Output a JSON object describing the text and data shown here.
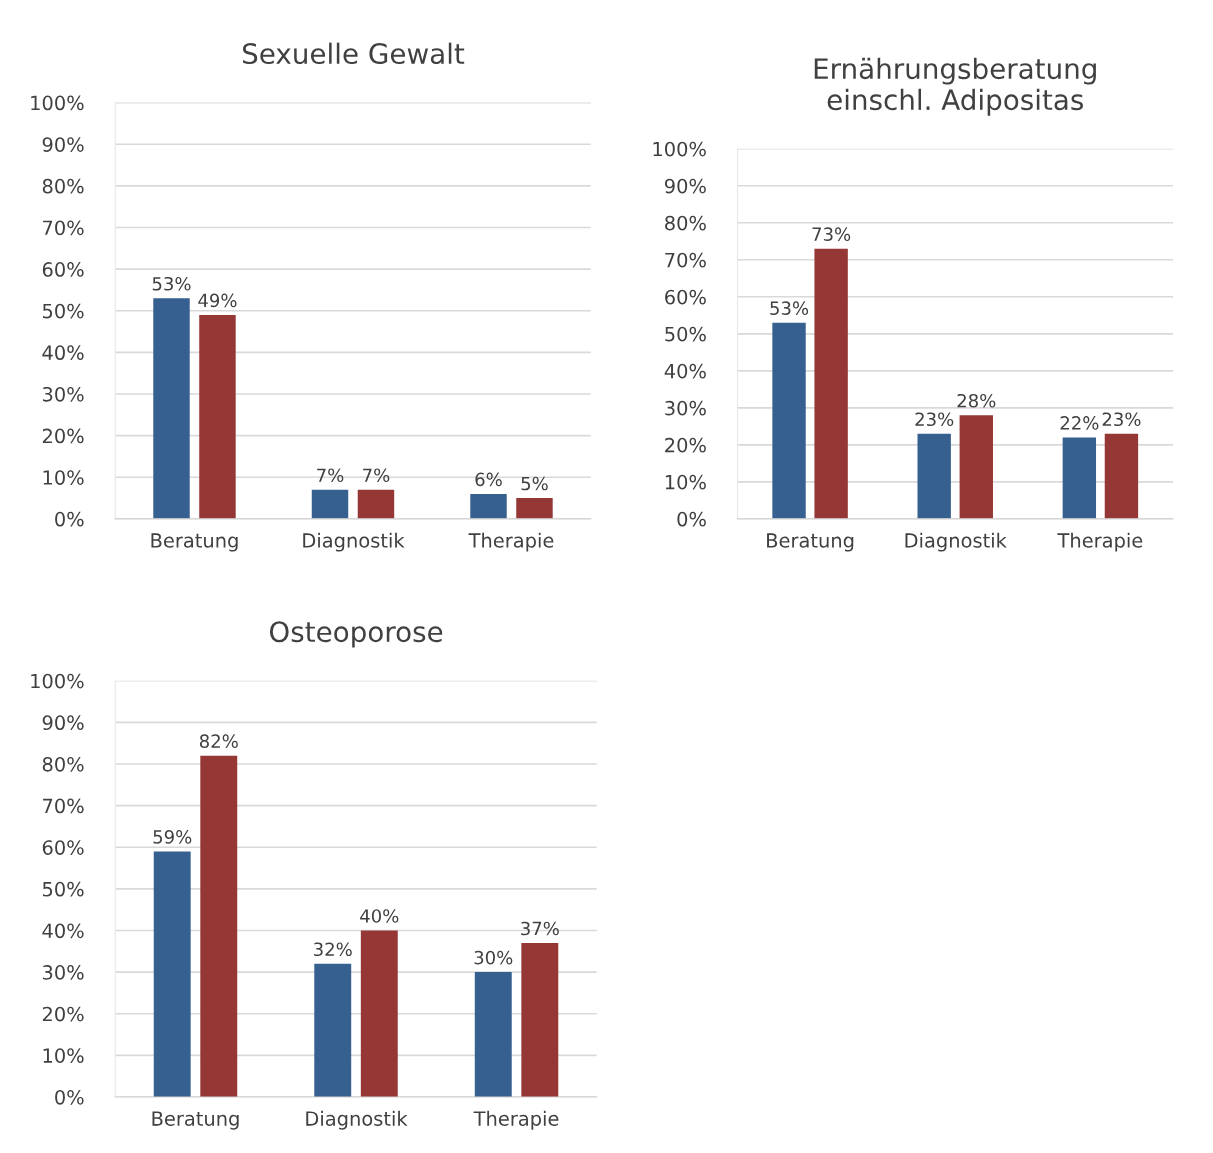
{
  "chart_data": [
    {
      "type": "bar",
      "title": "Sexuelle Gewalt",
      "categories": [
        "Beratung",
        "Diagnostik",
        "Therapie"
      ],
      "series": [
        {
          "color": "#36608f",
          "values": [
            53,
            7,
            6
          ],
          "value_labels": [
            "53%",
            "7%",
            "6%"
          ]
        },
        {
          "color": "#953735",
          "values": [
            49,
            7,
            5
          ],
          "value_labels": [
            "49%",
            "7%",
            "5%"
          ]
        }
      ],
      "ylim": [
        0,
        100
      ],
      "yticks": [
        {
          "value": 0,
          "label": "0%"
        },
        {
          "value": 10,
          "label": "10%"
        },
        {
          "value": 20,
          "label": "20%"
        },
        {
          "value": 30,
          "label": "30%"
        },
        {
          "value": 40,
          "label": "40%"
        },
        {
          "value": 50,
          "label": "50%"
        },
        {
          "value": 60,
          "label": "60%"
        },
        {
          "value": 70,
          "label": "70%"
        },
        {
          "value": 80,
          "label": "80%"
        },
        {
          "value": 90,
          "label": "90%"
        },
        {
          "value": 100,
          "label": "100%"
        }
      ],
      "grid": "y"
    },
    {
      "type": "bar",
      "title": "Ernährungsberatung\neinschl. Adipositas",
      "categories": [
        "Beratung",
        "Diagnostik",
        "Therapie"
      ],
      "series": [
        {
          "color": "#36608f",
          "values": [
            53,
            23,
            22
          ],
          "value_labels": [
            "53%",
            "23%",
            "22%"
          ]
        },
        {
          "color": "#953735",
          "values": [
            73,
            28,
            23
          ],
          "value_labels": [
            "73%",
            "28%",
            "23%"
          ]
        }
      ],
      "ylim": [
        0,
        100
      ],
      "yticks": [
        {
          "value": 0,
          "label": "0%"
        },
        {
          "value": 10,
          "label": "10%"
        },
        {
          "value": 20,
          "label": "20%"
        },
        {
          "value": 30,
          "label": "30%"
        },
        {
          "value": 40,
          "label": "40%"
        },
        {
          "value": 50,
          "label": "50%"
        },
        {
          "value": 60,
          "label": "60%"
        },
        {
          "value": 70,
          "label": "70%"
        },
        {
          "value": 80,
          "label": "80%"
        },
        {
          "value": 90,
          "label": "90%"
        },
        {
          "value": 100,
          "label": "100%"
        }
      ],
      "grid": "y"
    },
    {
      "type": "bar",
      "title": "Osteoporose",
      "categories": [
        "Beratung",
        "Diagnostik",
        "Therapie"
      ],
      "series": [
        {
          "color": "#36608f",
          "values": [
            59,
            32,
            30
          ],
          "value_labels": [
            "59%",
            "32%",
            "30%"
          ]
        },
        {
          "color": "#953735",
          "values": [
            82,
            40,
            37
          ],
          "value_labels": [
            "82%",
            "40%",
            "37%"
          ]
        }
      ],
      "ylim": [
        0,
        100
      ],
      "yticks": [
        {
          "value": 0,
          "label": "0%"
        },
        {
          "value": 10,
          "label": "10%"
        },
        {
          "value": 20,
          "label": "20%"
        },
        {
          "value": 30,
          "label": "30%"
        },
        {
          "value": 40,
          "label": "40%"
        },
        {
          "value": 50,
          "label": "50%"
        },
        {
          "value": 60,
          "label": "60%"
        },
        {
          "value": 70,
          "label": "70%"
        },
        {
          "value": 80,
          "label": "80%"
        },
        {
          "value": 90,
          "label": "90%"
        },
        {
          "value": 100,
          "label": "100%"
        }
      ],
      "grid": "y"
    }
  ]
}
